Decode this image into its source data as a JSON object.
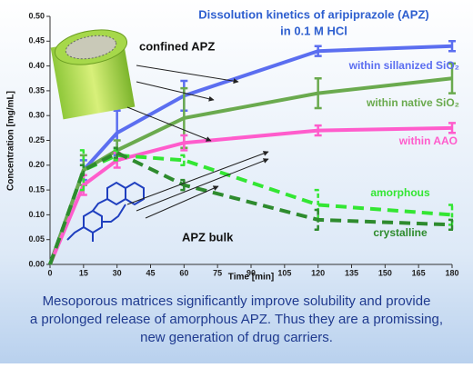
{
  "chart_data": {
    "type": "line",
    "title": [
      "Dissolution kinetics of aripiprazole (APZ)",
      "in 0.1 M HCl"
    ],
    "x_label": "Time [min]",
    "y_label": "Concentration [mg/mL]",
    "x": [
      0,
      15,
      30,
      60,
      120,
      180
    ],
    "xlim": [
      0,
      180
    ],
    "xticks": [
      0,
      15,
      30,
      45,
      60,
      75,
      90,
      105,
      120,
      135,
      150,
      165,
      180
    ],
    "ylim": [
      0,
      0.5
    ],
    "yticks": [
      {
        "value": 0,
        "label": "0.00"
      },
      {
        "value": 0.05,
        "label": "0.05"
      },
      {
        "value": 0.1,
        "label": "0.10"
      },
      {
        "value": 0.15,
        "label": "0.15"
      },
      {
        "value": 0.2,
        "label": "0.20"
      },
      {
        "value": 0.25,
        "label": "0.25"
      },
      {
        "value": 0.3,
        "label": "0.30"
      },
      {
        "value": 0.35,
        "label": "0.35"
      },
      {
        "value": 0.4,
        "label": "0.40"
      },
      {
        "value": 0.45,
        "label": "0.45"
      },
      {
        "value": 0.5,
        "label": "0.50"
      }
    ],
    "series": [
      {
        "name": "within sillanized SiO₂",
        "color": "#5b6ef0",
        "dashed": false,
        "values": [
          0,
          0.19,
          0.265,
          0.34,
          0.43,
          0.44
        ],
        "errors": [
          0,
          0.02,
          0.045,
          0.03,
          0.01,
          0.01
        ]
      },
      {
        "name": "within native SiO₂",
        "color": "#6aaa4e",
        "dashed": false,
        "values": [
          0,
          0.19,
          0.23,
          0.295,
          0.345,
          0.375
        ],
        "errors": [
          0,
          0.03,
          0.02,
          0.06,
          0.03,
          0.03
        ]
      },
      {
        "name": "within AAO",
        "color": "#ff5ccc",
        "dashed": false,
        "values": [
          0,
          0.16,
          0.21,
          0.245,
          0.27,
          0.275
        ],
        "errors": [
          0,
          0.02,
          0.015,
          0.015,
          0.01,
          0.01
        ]
      },
      {
        "name": "amorphous",
        "color": "#33e633",
        "dashed": true,
        "values": [
          0,
          0.19,
          0.22,
          0.21,
          0.12,
          0.1
        ],
        "errors": [
          0,
          0.04,
          0.01,
          0.01,
          0.03,
          0.02
        ]
      },
      {
        "name": "crystalline",
        "color": "#2e8b2e",
        "dashed": true,
        "values": [
          0,
          0.19,
          0.225,
          0.16,
          0.09,
          0.08
        ],
        "errors": [
          0,
          0.01,
          0.01,
          0.01,
          0.02,
          0.01
        ]
      }
    ],
    "annotations": [
      "confined APZ",
      "APZ bulk"
    ],
    "caption": [
      "Mesoporous matrices significantly  improve solubility and provide",
      "a prolonged release of amorphous APZ. Thus they are a promissing,",
      "new generation of drug carriers."
    ]
  }
}
